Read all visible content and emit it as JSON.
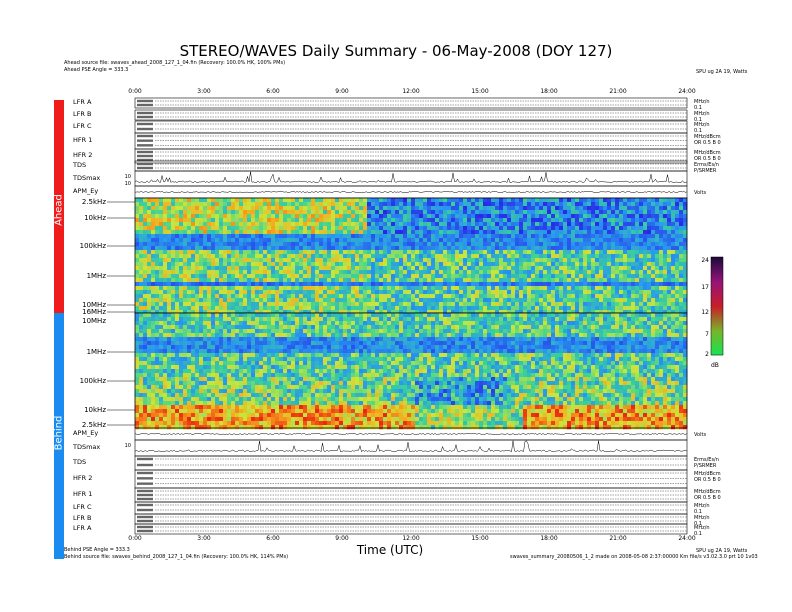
{
  "title": "STEREO/WAVES Daily Summary - 06-May-2008 (DOY 127)",
  "header_notes": {
    "ahead_source": "Ahead source file: swaves_ahead_2008_127_1_04.fin (Recovery: 100.0% HK, 100% PMs)",
    "ahead_pse": "Ahead PSE Angle = 333.3",
    "top_right": "SPU ug 2A 19, Watts"
  },
  "footer_notes": {
    "behind_pse": "Behind PSE Angle = 333.3",
    "behind_source": "Behind source file: swaves_behind_2008_127_1_04.fin (Recovery: 100.0% HK, 114% PMs)",
    "right_bottom": "SPU ug 2A 19, Watts",
    "right_bottom2": "swaves_summary_20080506_1_2 made on 2008-05-08 2:37:00000 Km file/s v3.02.3.0 prt 10 1v03"
  },
  "sidebar": {
    "ahead": "Ahead",
    "behind": "Behind"
  },
  "x_axis": {
    "label": "Time (UTC)",
    "ticks": [
      "0:00",
      "3:00",
      "6:00",
      "9:00",
      "12:00",
      "15:00",
      "18:00",
      "21:00",
      "24:00"
    ]
  },
  "ahead_panels": [
    "LFR A",
    "LFR B",
    "LFR C",
    "HFR 1",
    "HFR 2",
    "TDS",
    "TDSmax",
    "APM_Ey"
  ],
  "behind_panels": [
    "APM_Ey",
    "TDSmax",
    "TDS",
    "HFR 2",
    "HFR 1",
    "LFR C",
    "LFR B",
    "LFR A"
  ],
  "ahead_freq_ticks": [
    "2.5kHz",
    "10kHz",
    "100kHz",
    "1MHz",
    "10MHz",
    "16MHz"
  ],
  "behind_freq_ticks": [
    "10MHz",
    "1MHz",
    "100kHz",
    "10kHz",
    "2.5kHz"
  ],
  "tdsmax_tick": "10",
  "tdsmax_ticks_ahead": [
    "10",
    "10"
  ],
  "colorbar": {
    "label": "dB",
    "ticks": [
      "24",
      "17",
      "12",
      "7",
      "2"
    ],
    "min": 2,
    "max": 24
  },
  "panel_right_labels": {
    "lfr": [
      "MHz/n",
      "0.1"
    ],
    "hfr": [
      "MHz/dBcm",
      "OR 0.5 B 0"
    ],
    "tds": [
      "Erms/Es/n",
      "P/SRMER"
    ],
    "apm": [
      "Volts"
    ]
  },
  "chart_data": {
    "type": "heatmap",
    "title": "STEREO/WAVES Daily Summary - 06-May-2008 (DOY 127)",
    "xlabel": "Time (UTC)",
    "x_range_hours": [
      0,
      24
    ],
    "x_ticks": [
      "0:00",
      "3:00",
      "6:00",
      "9:00",
      "12:00",
      "15:00",
      "18:00",
      "21:00",
      "24:00"
    ],
    "panels": [
      {
        "name": "Ahead",
        "y_ticks": [
          "2.5kHz",
          "10kHz",
          "100kHz",
          "1MHz",
          "10MHz",
          "16MHz"
        ],
        "y_range": [
          "2.5kHz",
          "16MHz"
        ]
      },
      {
        "name": "Behind",
        "y_ticks": [
          "10MHz",
          "1MHz",
          "100kHz",
          "10kHz",
          "2.5kHz"
        ],
        "y_range": [
          "16MHz",
          "2.5kHz"
        ]
      }
    ],
    "colorbar": {
      "label": "dB",
      "range": [
        2,
        24
      ],
      "ticks": [
        24,
        17,
        12,
        7,
        2
      ]
    }
  }
}
